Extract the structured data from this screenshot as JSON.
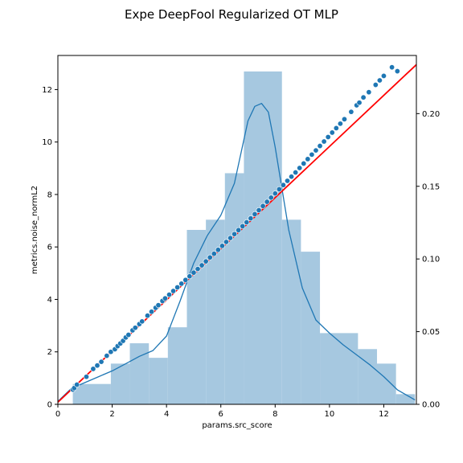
{
  "chart_data": {
    "type": "scatter",
    "title": "Expe DeepFool Regularized OT MLP",
    "xlabel": "params.src_score",
    "ylabel": "metrics.noise_normL2",
    "xlim": [
      0,
      13.2
    ],
    "ylim_left": [
      0,
      13.3
    ],
    "ylim_right": [
      0,
      0.24
    ],
    "xticks": [
      "0",
      "2",
      "4",
      "6",
      "8",
      "10",
      "12"
    ],
    "yticks_left": [
      "0",
      "2",
      "4",
      "6",
      "8",
      "10",
      "12"
    ],
    "yticks_right": [
      "0.00",
      "0.05",
      "0.10",
      "0.15",
      "0.20"
    ],
    "grid": false,
    "colors": {
      "scatter": "#1f77b4",
      "regression_line": "#ff0000",
      "histogram": "#a6c8e0",
      "kde": "#1f77b4"
    },
    "histogram": {
      "axis": "right",
      "bin_edges": [
        0.55,
        1.95,
        2.65,
        3.35,
        4.05,
        4.75,
        5.45,
        6.15,
        6.85,
        8.25,
        8.95,
        9.65,
        11.05,
        11.75,
        12.45,
        13.15
      ],
      "density": [
        0.014,
        0.028,
        0.042,
        0.032,
        0.053,
        0.12,
        0.127,
        0.159,
        0.229,
        0.127,
        0.105,
        0.049,
        0.038,
        0.028,
        0.007
      ]
    },
    "kde": {
      "axis": "right",
      "x": [
        0,
        0.5,
        1,
        1.5,
        2,
        2.5,
        3,
        3.5,
        4,
        4.5,
        5,
        5.5,
        6,
        6.5,
        7,
        7.25,
        7.5,
        7.75,
        8,
        8.5,
        9,
        9.5,
        10,
        10.5,
        11,
        11.5,
        12,
        12.5,
        13.15
      ],
      "y": [
        0.002,
        0.011,
        0.015,
        0.019,
        0.023,
        0.028,
        0.033,
        0.037,
        0.047,
        0.071,
        0.097,
        0.116,
        0.13,
        0.152,
        0.195,
        0.205,
        0.207,
        0.201,
        0.177,
        0.12,
        0.08,
        0.058,
        0.049,
        0.041,
        0.034,
        0.027,
        0.019,
        0.01,
        0.003
      ]
    },
    "regression_line": {
      "axis": "left",
      "x": [
        0,
        13.2
      ],
      "y": [
        0.08,
        12.95
      ]
    },
    "series": [
      {
        "axis": "left",
        "x": [
          0.55,
          0.6,
          0.7,
          1.05,
          1.3,
          1.45,
          1.6,
          1.8,
          1.95,
          2.1,
          2.2,
          2.3,
          2.4,
          2.5,
          2.6,
          2.75,
          2.85,
          3.0,
          3.1,
          3.3,
          3.45,
          3.6,
          3.7,
          3.85,
          3.95,
          4.1,
          4.25,
          4.4,
          4.55,
          4.7,
          4.85,
          5.0,
          5.15,
          5.3,
          5.45,
          5.6,
          5.75,
          5.9,
          6.05,
          6.2,
          6.35,
          6.5,
          6.65,
          6.8,
          6.95,
          7.1,
          7.25,
          7.4,
          7.55,
          7.7,
          7.85,
          8.0,
          8.15,
          8.3,
          8.45,
          8.6,
          8.75,
          8.9,
          9.05,
          9.2,
          9.35,
          9.5,
          9.65,
          9.8,
          9.95,
          10.1,
          10.25,
          10.4,
          10.55,
          10.8,
          11.0,
          11.1,
          11.25,
          11.45,
          11.7,
          11.85,
          12.0,
          12.3,
          12.5
        ],
        "y": [
          0.56,
          0.62,
          0.75,
          1.05,
          1.35,
          1.48,
          1.62,
          1.85,
          2.0,
          2.1,
          2.22,
          2.32,
          2.42,
          2.55,
          2.65,
          2.82,
          2.92,
          3.06,
          3.16,
          3.38,
          3.53,
          3.68,
          3.78,
          3.94,
          4.04,
          4.18,
          4.32,
          4.46,
          4.6,
          4.74,
          4.88,
          5.02,
          5.16,
          5.3,
          5.45,
          5.6,
          5.74,
          5.89,
          6.04,
          6.19,
          6.34,
          6.49,
          6.64,
          6.79,
          6.94,
          7.09,
          7.25,
          7.4,
          7.56,
          7.72,
          7.88,
          8.04,
          8.2,
          8.36,
          8.52,
          8.68,
          8.84,
          9.01,
          9.18,
          9.35,
          9.52,
          9.68,
          9.85,
          10.02,
          10.19,
          10.36,
          10.53,
          10.7,
          10.87,
          11.15,
          11.4,
          11.5,
          11.7,
          11.9,
          12.18,
          12.35,
          12.52,
          12.85,
          12.7
        ]
      }
    ]
  }
}
